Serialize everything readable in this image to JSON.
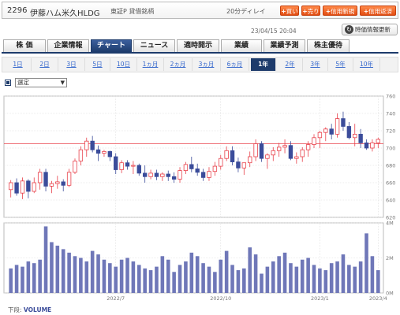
{
  "header": {
    "code": "2296",
    "name": "伊藤ハム米久HLDG",
    "market": "東証P 貸借銘柄",
    "delay": "20分ディレイ",
    "buttons": [
      "買い",
      "売り",
      "信用新規",
      "信用返済"
    ]
  },
  "timestamp": "23/04/15 20:04",
  "refresh_label": "時価情報更新",
  "tabs": [
    "株 価",
    "企業情報",
    "チャート",
    "ニュース",
    "適時開示",
    "業績",
    "業績予測",
    "株主優待"
  ],
  "active_tab": 2,
  "periods": [
    "1日",
    "2日",
    "3日",
    "5日",
    "10日",
    "1ヵ月",
    "2ヵ月",
    "3ヵ月",
    "6ヵ月",
    "1年",
    "2年",
    "3年",
    "5年",
    "10年"
  ],
  "active_period": 9,
  "indicator_select": "選定",
  "footer": {
    "label": "下段:",
    "value": "VOLUME"
  },
  "chart_data": {
    "type": "candlestick",
    "price_axis": {
      "ticks": [
        620,
        640,
        660,
        680,
        700,
        720,
        740,
        760
      ],
      "range": [
        620,
        760
      ]
    },
    "volume_axis": {
      "ticks": [
        "0M",
        "2M",
        "4M"
      ],
      "range": [
        0,
        4
      ]
    },
    "x_ticks": [
      "2022/7",
      "2022/10",
      "2023/1",
      "2023/4"
    ],
    "reference_line": 705,
    "colors": {
      "up": "#e8404a",
      "down": "#3b4c9a",
      "volume": "#6f77b8",
      "grid": "#dddddd",
      "reference": "#e8404a"
    },
    "candles": [
      [
        652,
        663,
        643,
        660
      ],
      [
        660,
        665,
        645,
        648
      ],
      [
        648,
        666,
        641,
        662
      ],
      [
        662,
        664,
        642,
        650
      ],
      [
        650,
        666,
        648,
        660
      ],
      [
        660,
        676,
        652,
        672
      ],
      [
        672,
        676,
        650,
        656
      ],
      [
        656,
        662,
        648,
        659
      ],
      [
        659,
        668,
        653,
        661
      ],
      [
        661,
        664,
        650,
        657
      ],
      [
        657,
        676,
        655,
        672
      ],
      [
        672,
        688,
        670,
        685
      ],
      [
        685,
        702,
        680,
        698
      ],
      [
        698,
        712,
        690,
        708
      ],
      [
        708,
        714,
        695,
        698
      ],
      [
        698,
        703,
        685,
        694
      ],
      [
        694,
        698,
        690,
        696
      ],
      [
        696,
        697,
        685,
        690
      ],
      [
        690,
        694,
        670,
        675
      ],
      [
        675,
        686,
        671,
        683
      ],
      [
        683,
        686,
        675,
        679
      ],
      [
        679,
        685,
        670,
        680
      ],
      [
        680,
        682,
        668,
        671
      ],
      [
        671,
        680,
        660,
        667
      ],
      [
        667,
        675,
        664,
        671
      ],
      [
        671,
        675,
        663,
        667
      ],
      [
        667,
        672,
        662,
        670
      ],
      [
        670,
        674,
        662,
        667
      ],
      [
        667,
        672,
        660,
        664
      ],
      [
        664,
        678,
        660,
        674
      ],
      [
        674,
        684,
        670,
        681
      ],
      [
        681,
        690,
        672,
        676
      ],
      [
        676,
        682,
        668,
        672
      ],
      [
        672,
        676,
        662,
        666
      ],
      [
        666,
        678,
        662,
        673
      ],
      [
        673,
        684,
        668,
        679
      ],
      [
        679,
        692,
        675,
        688
      ],
      [
        688,
        702,
        685,
        697
      ],
      [
        697,
        702,
        680,
        684
      ],
      [
        684,
        689,
        672,
        677
      ],
      [
        677,
        682,
        669,
        683
      ],
      [
        683,
        696,
        678,
        690
      ],
      [
        690,
        710,
        685,
        705
      ],
      [
        705,
        708,
        684,
        688
      ],
      [
        688,
        694,
        676,
        692
      ],
      [
        692,
        701,
        685,
        697
      ],
      [
        697,
        706,
        690,
        701
      ],
      [
        701,
        710,
        694,
        703
      ],
      [
        703,
        708,
        686,
        688
      ],
      [
        688,
        695,
        682,
        690
      ],
      [
        690,
        701,
        684,
        698
      ],
      [
        698,
        708,
        690,
        704
      ],
      [
        704,
        716,
        700,
        712
      ],
      [
        712,
        720,
        700,
        718
      ],
      [
        718,
        724,
        708,
        722
      ],
      [
        722,
        728,
        710,
        716
      ],
      [
        716,
        740,
        712,
        734
      ],
      [
        734,
        742,
        720,
        725
      ],
      [
        725,
        730,
        710,
        712
      ],
      [
        712,
        728,
        702,
        716
      ],
      [
        716,
        722,
        700,
        706
      ],
      [
        706,
        710,
        698,
        700
      ],
      [
        700,
        710,
        696,
        706
      ],
      [
        706,
        712,
        700,
        710
      ]
    ],
    "volumes": [
      1.4,
      1.6,
      1.5,
      1.8,
      1.7,
      1.9,
      3.8,
      2.9,
      2.7,
      2.5,
      2.3,
      2.1,
      2.0,
      1.8,
      2.4,
      2.2,
      1.9,
      1.7,
      1.5,
      1.9,
      2.0,
      1.8,
      1.6,
      1.4,
      1.3,
      1.5,
      2.1,
      1.9,
      1.2,
      1.6,
      1.8,
      2.3,
      2.1,
      1.7,
      1.5,
      1.2,
      1.9,
      2.4,
      1.6,
      1.3,
      1.4,
      2.6,
      2.2,
      1.1,
      1.5,
      1.8,
      2.1,
      2.3,
      1.7,
      1.5,
      1.9,
      2.0,
      1.6,
      1.4,
      1.3,
      1.7,
      1.8,
      2.2,
      1.6,
      1.5,
      1.8,
      3.4,
      2.1,
      1.3
    ]
  }
}
